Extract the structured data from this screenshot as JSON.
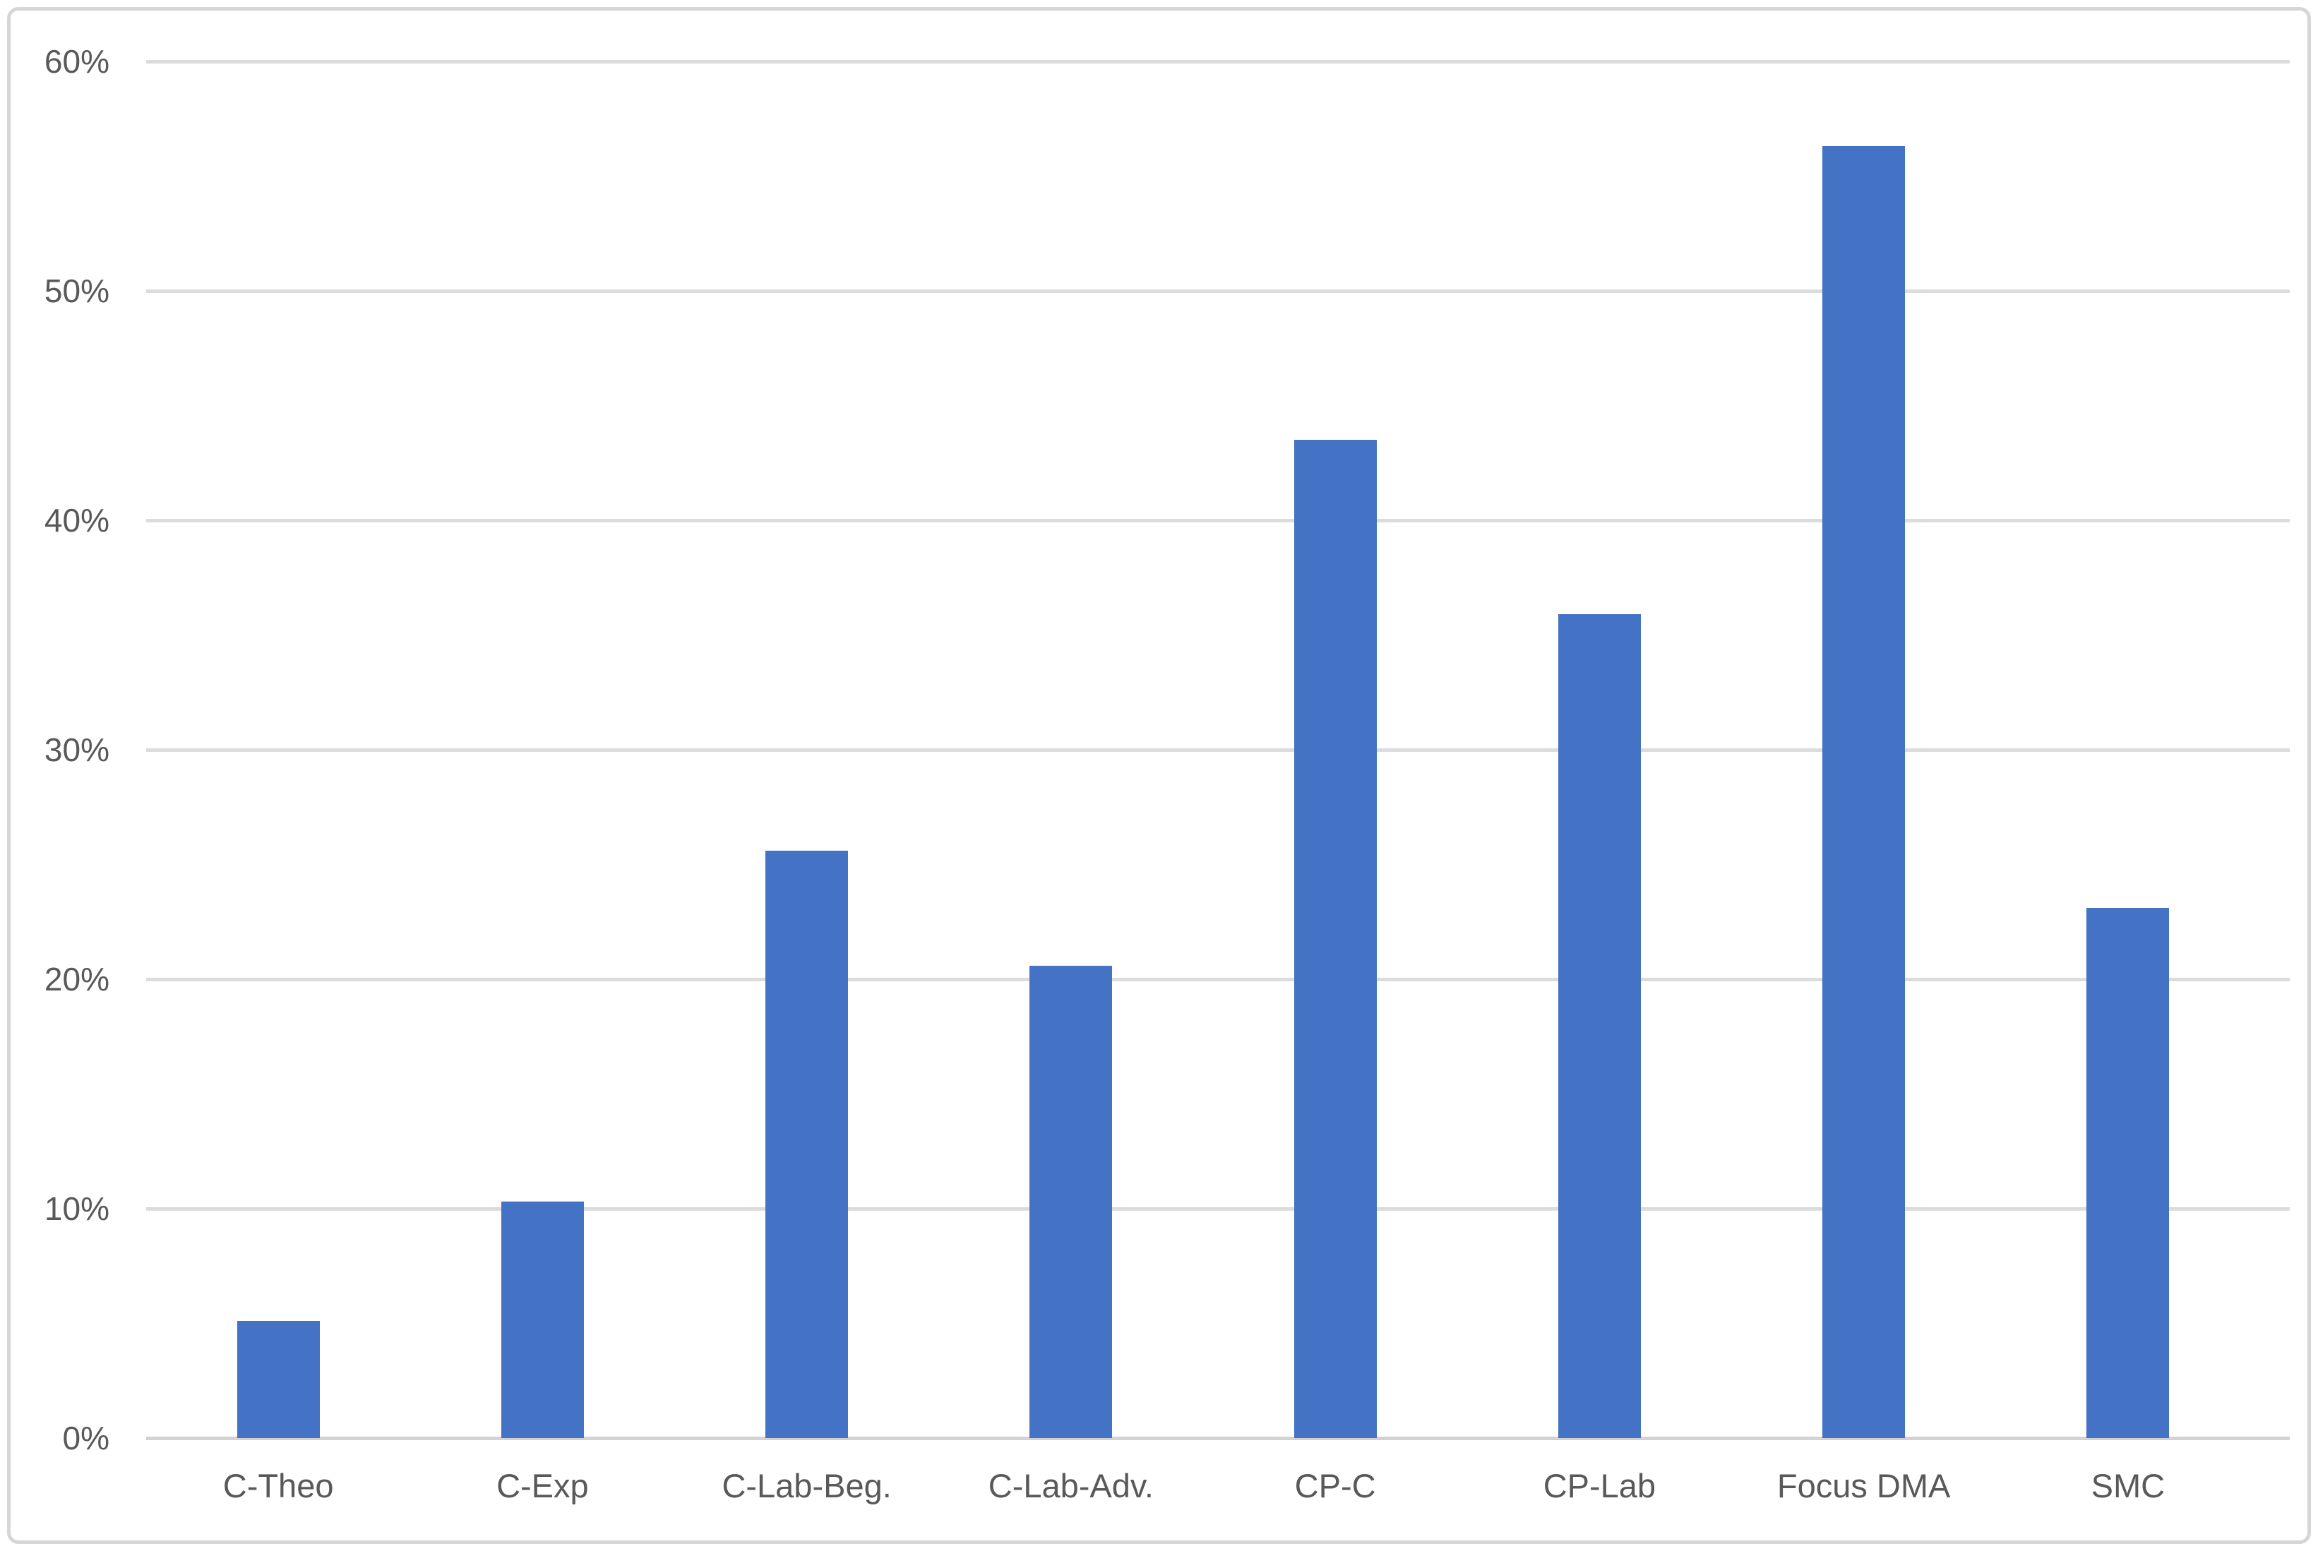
{
  "chart_data": {
    "type": "bar",
    "title": "",
    "categories": [
      "C-Theo",
      "C-Exp",
      "C-Lab-Beg.",
      "C-Lab-Adv.",
      "CP-C",
      "CP-Lab",
      "Focus DMA",
      "SMC"
    ],
    "values": [
      5.1,
      10.3,
      25.6,
      20.6,
      43.5,
      35.9,
      56.3,
      23.1
    ],
    "unit": "%",
    "xlabel": "",
    "ylabel": "",
    "ylim": [
      0,
      60
    ],
    "y_tick_step": 10,
    "y_ticks": [
      0,
      10,
      20,
      30,
      40,
      50,
      60
    ],
    "y_tick_labels": [
      "0%",
      "10%",
      "20%",
      "30%",
      "40%",
      "50%",
      "60%"
    ],
    "grid": true,
    "legend": false,
    "colors": {
      "bar": "#4472C4",
      "gridline": "#DCDCDC",
      "axis_line": "#D2D2D2",
      "tick_text": "#595959",
      "frame_border": "#D6D6D6",
      "background": "#FFFFFF"
    }
  }
}
